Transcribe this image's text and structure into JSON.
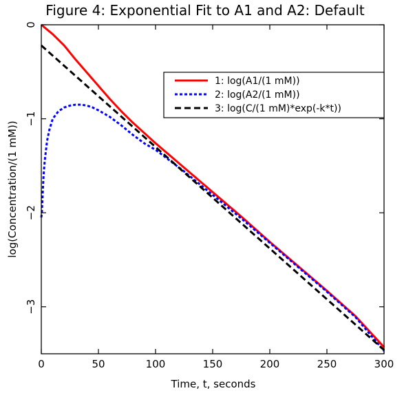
{
  "chart_data": {
    "type": "line",
    "title": "Figure 4: Exponential Fit to A1 and A2: Default",
    "xlabel": "Time, t, seconds",
    "ylabel": "log(Concentration/(1 mM))",
    "xlim": [
      0,
      300
    ],
    "ylim": [
      -3.5,
      0
    ],
    "xticks": [
      0,
      50,
      100,
      150,
      200,
      250,
      300
    ],
    "yticks": [
      0,
      -1,
      -2,
      -3
    ],
    "grid": false,
    "legend_position": "top-right",
    "series": [
      {
        "name": "1: log(A1/(1 mM))",
        "color": "#ff0000",
        "dash": "solid",
        "x": [
          0,
          10,
          20,
          30,
          40,
          50,
          60,
          70,
          80,
          90,
          100,
          125,
          150,
          175,
          200,
          225,
          250,
          275,
          300
        ],
        "y": [
          0,
          -0.1,
          -0.22,
          -0.37,
          -0.51,
          -0.65,
          -0.79,
          -0.92,
          -1.04,
          -1.15,
          -1.26,
          -1.52,
          -1.78,
          -2.04,
          -2.31,
          -2.57,
          -2.83,
          -3.1,
          -3.43
        ]
      },
      {
        "name": "2: log(A2/(1 mM))",
        "color": "#0000ff",
        "dash": "dotted",
        "x": [
          0,
          0.5,
          1,
          2,
          3,
          5,
          7,
          10,
          15,
          20,
          25,
          30,
          35,
          40,
          45,
          50,
          60,
          70,
          80,
          90,
          100,
          125,
          150,
          175,
          200,
          225,
          250,
          275,
          300
        ],
        "y": [
          -2.05,
          -2.0,
          -1.85,
          -1.6,
          -1.45,
          -1.24,
          -1.12,
          -1.0,
          -0.92,
          -0.88,
          -0.86,
          -0.85,
          -0.85,
          -0.86,
          -0.88,
          -0.91,
          -0.98,
          -1.07,
          -1.17,
          -1.26,
          -1.33,
          -1.56,
          -1.81,
          -2.06,
          -2.32,
          -2.58,
          -2.84,
          -3.11,
          -3.47
        ]
      },
      {
        "name": "3: log(C/(1 mM)*exp(-k*t))",
        "color": "#000000",
        "dash": "dashed",
        "x": [
          0,
          300
        ],
        "y": [
          -0.22,
          -3.46
        ]
      }
    ]
  }
}
